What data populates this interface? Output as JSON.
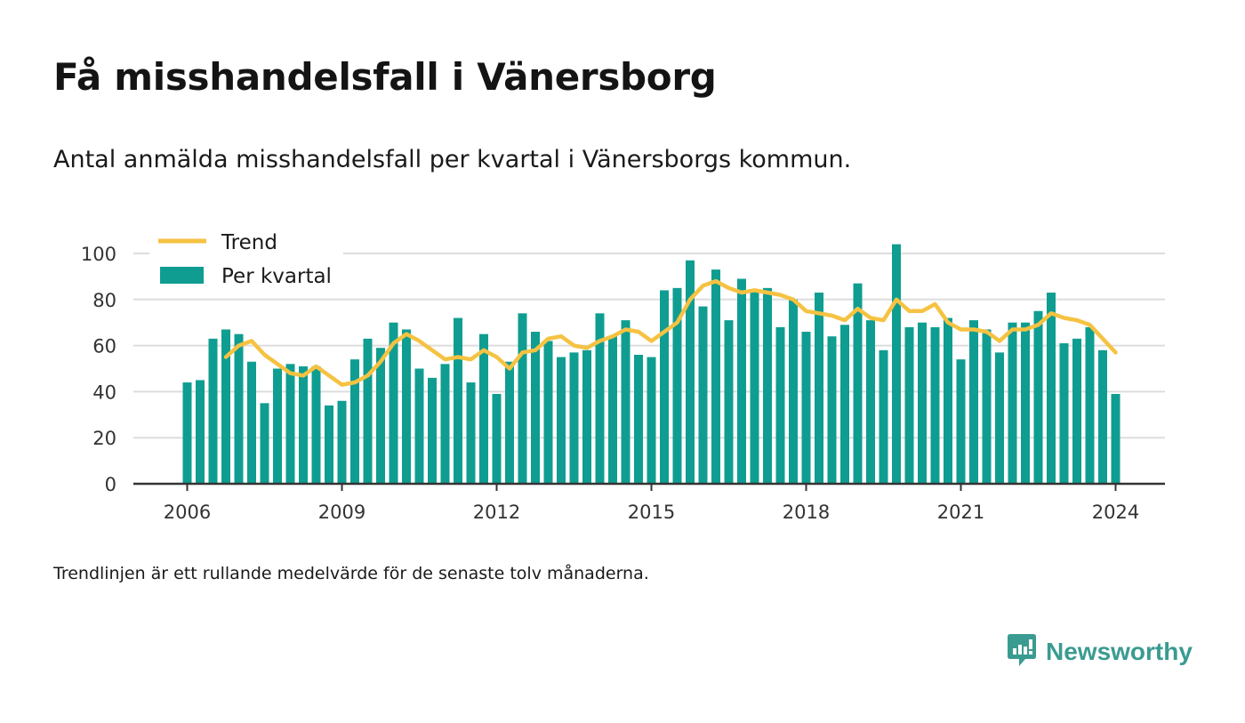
{
  "title": "Få misshandelsfall i Vänersborg",
  "subtitle": "Antal anmälda misshandelsfall per kvartal i Vänersborgs kommun.",
  "footnote": "Trendlinjen är ett rullande medelvärde för de senaste tolv månaderna.",
  "brand": {
    "name": "Newsworthy",
    "icon": "newsworthy-chart-bubble-icon"
  },
  "colors": {
    "bars": "#0f9d91",
    "trend": "#f5c242",
    "grid": "#dddddd",
    "axis": "#333333",
    "brand": "#3a9b91"
  },
  "chart_data": {
    "type": "bar",
    "x_unit": "quarter",
    "x_start": "2006 Q1",
    "ylim": [
      0,
      100
    ],
    "yticks": [
      0,
      20,
      40,
      60,
      80,
      100
    ],
    "xticks": [
      "2006",
      "2009",
      "2012",
      "2015",
      "2018",
      "2021",
      "2024"
    ],
    "grid": true,
    "legend_position": "top-left",
    "series": [
      {
        "name": "Per kvartal",
        "type": "bar",
        "values": [
          44,
          45,
          63,
          67,
          65,
          53,
          35,
          50,
          52,
          51,
          51,
          34,
          36,
          54,
          63,
          59,
          70,
          67,
          50,
          46,
          52,
          72,
          44,
          65,
          39,
          53,
          74,
          66,
          62,
          55,
          57,
          58,
          74,
          64,
          71,
          56,
          55,
          84,
          85,
          97,
          77,
          93,
          71,
          89,
          84,
          85,
          68,
          80,
          66,
          83,
          64,
          69,
          87,
          71,
          58,
          104,
          68,
          70,
          68,
          72,
          54,
          71,
          67,
          57,
          70,
          70,
          75,
          83,
          61,
          63,
          68,
          58,
          39
        ]
      },
      {
        "name": "Trend",
        "type": "line",
        "values": [
          null,
          null,
          null,
          55,
          60,
          62,
          56,
          52,
          48,
          47,
          51,
          47,
          43,
          44,
          47,
          53,
          61,
          65,
          62,
          58,
          54,
          55,
          54,
          58,
          55,
          50,
          57,
          58,
          63,
          64,
          60,
          59,
          62,
          64,
          67,
          66,
          62,
          66,
          70,
          80,
          86,
          88,
          85,
          83,
          84,
          83,
          82,
          80,
          75,
          74,
          73,
          71,
          76,
          72,
          71,
          80,
          75,
          75,
          78,
          70,
          67,
          67,
          66,
          62,
          67,
          67,
          69,
          74,
          72,
          71,
          69,
          63,
          57
        ]
      }
    ]
  }
}
